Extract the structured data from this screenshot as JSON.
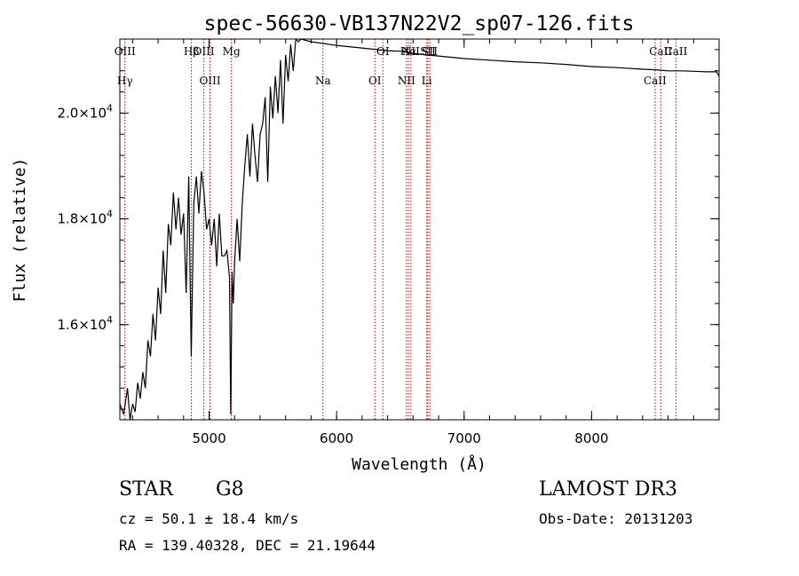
{
  "chart_data": {
    "type": "line",
    "title": "spec-56630-VB137N22V2_sp07-126.fits",
    "xlabel": "Wavelength (Å)",
    "ylabel": "Flux (relative)",
    "xlim": [
      4300,
      9000
    ],
    "ylim": [
      14200,
      21400
    ],
    "x_ticks": [
      {
        "value": 5000,
        "label": "5000"
      },
      {
        "value": 6000,
        "label": "6000"
      },
      {
        "value": 7000,
        "label": "7000"
      },
      {
        "value": 8000,
        "label": "8000"
      }
    ],
    "y_ticks": [
      {
        "value": 16000,
        "mantissa": "1.6×10",
        "exp": "4"
      },
      {
        "value": 18000,
        "mantissa": "1.8×10",
        "exp": "4"
      },
      {
        "value": 20000,
        "mantissa": "2.0×10",
        "exp": "4"
      }
    ],
    "grid": false,
    "series": [
      {
        "color": "#000000",
        "x": [
          4300,
          4330,
          4360,
          4380,
          4400,
          4420,
          4440,
          4460,
          4480,
          4500,
          4520,
          4540,
          4560,
          4580,
          4600,
          4620,
          4640,
          4660,
          4680,
          4700,
          4720,
          4740,
          4760,
          4780,
          4800,
          4820,
          4840,
          4860,
          4880,
          4900,
          4920,
          4940,
          4960,
          4980,
          5000,
          5020,
          5040,
          5060,
          5080,
          5100,
          5120,
          5140,
          5160,
          5170,
          5180,
          5190,
          5200,
          5220,
          5240,
          5260,
          5280,
          5300,
          5320,
          5340,
          5360,
          5380,
          5400,
          5420,
          5440,
          5460,
          5480,
          5500,
          5520,
          5540,
          5560,
          5580,
          5600,
          5620,
          5640,
          5660,
          5680,
          5700,
          5720,
          5800,
          6000,
          6200,
          6400,
          6500,
          6600,
          6700,
          6800,
          7000,
          7200,
          7400,
          7600,
          7800,
          8000,
          8200,
          8400,
          8500,
          8600,
          8700,
          8800,
          8900,
          8980,
          9000
        ],
        "y": [
          14500,
          14300,
          14800,
          14200,
          14500,
          14350,
          14900,
          14600,
          15100,
          14800,
          15700,
          15400,
          16200,
          15700,
          16700,
          16200,
          17400,
          16600,
          17900,
          17500,
          18500,
          17800,
          18400,
          17700,
          18100,
          16600,
          18800,
          15400,
          18300,
          18800,
          18100,
          18900,
          18500,
          17800,
          18000,
          17500,
          18000,
          17100,
          18100,
          17300,
          17300,
          17400,
          16900,
          14300,
          17000,
          16400,
          17200,
          18000,
          17200,
          18300,
          19000,
          19600,
          18800,
          19800,
          19200,
          18700,
          19600,
          19800,
          20300,
          18700,
          20500,
          19900,
          20700,
          20000,
          21000,
          19800,
          21100,
          20600,
          21300,
          20800,
          21400,
          21350,
          21400,
          21350,
          21280,
          21230,
          21180,
          21170,
          21130,
          21100,
          21080,
          21030,
          21000,
          20970,
          20950,
          20920,
          20880,
          20860,
          20830,
          20820,
          20800,
          20800,
          20790,
          20780,
          20780,
          20700
        ]
      }
    ],
    "lines": [
      {
        "x": 4340,
        "top": "OIII",
        "bottom": "Hγ"
      },
      {
        "x": 4861,
        "top": "Hβ",
        "bottom": ""
      },
      {
        "x": 4959,
        "top": "OIII",
        "bottom": ""
      },
      {
        "x": 5007,
        "top": "",
        "bottom": "OIII"
      },
      {
        "x": 5175,
        "top": "Mg",
        "bottom": ""
      },
      {
        "x": 5893,
        "top": "",
        "bottom": "Na"
      },
      {
        "x": 6300,
        "top": "",
        "bottom": "OI"
      },
      {
        "x": 6363,
        "top": "OI",
        "bottom": ""
      },
      {
        "x": 6548,
        "top": "",
        "bottom": "NII"
      },
      {
        "x": 6563,
        "top": "Hα",
        "bottom": ""
      },
      {
        "x": 6583,
        "top": "NII",
        "bottom": ""
      },
      {
        "x": 6707,
        "top": "",
        "bottom": "Li"
      },
      {
        "x": 6716,
        "top": "SII",
        "bottom": ""
      },
      {
        "x": 6731,
        "top": "SII",
        "bottom": ""
      },
      {
        "x": 8498,
        "top": "",
        "bottom": "CaII"
      },
      {
        "x": 8542,
        "top": "CaII",
        "bottom": ""
      },
      {
        "x": 8662,
        "top": "CaII",
        "bottom": ""
      }
    ],
    "line_color": "#cc0000"
  },
  "info": {
    "class": "STAR",
    "subclass": "G8",
    "survey": "LAMOST DR3",
    "cz": "cz = 50.1 ± 18.4 km/s",
    "obs_date": "Obs-Date: 20131203",
    "coords": "RA = 139.40328, DEC =  21.19644"
  }
}
